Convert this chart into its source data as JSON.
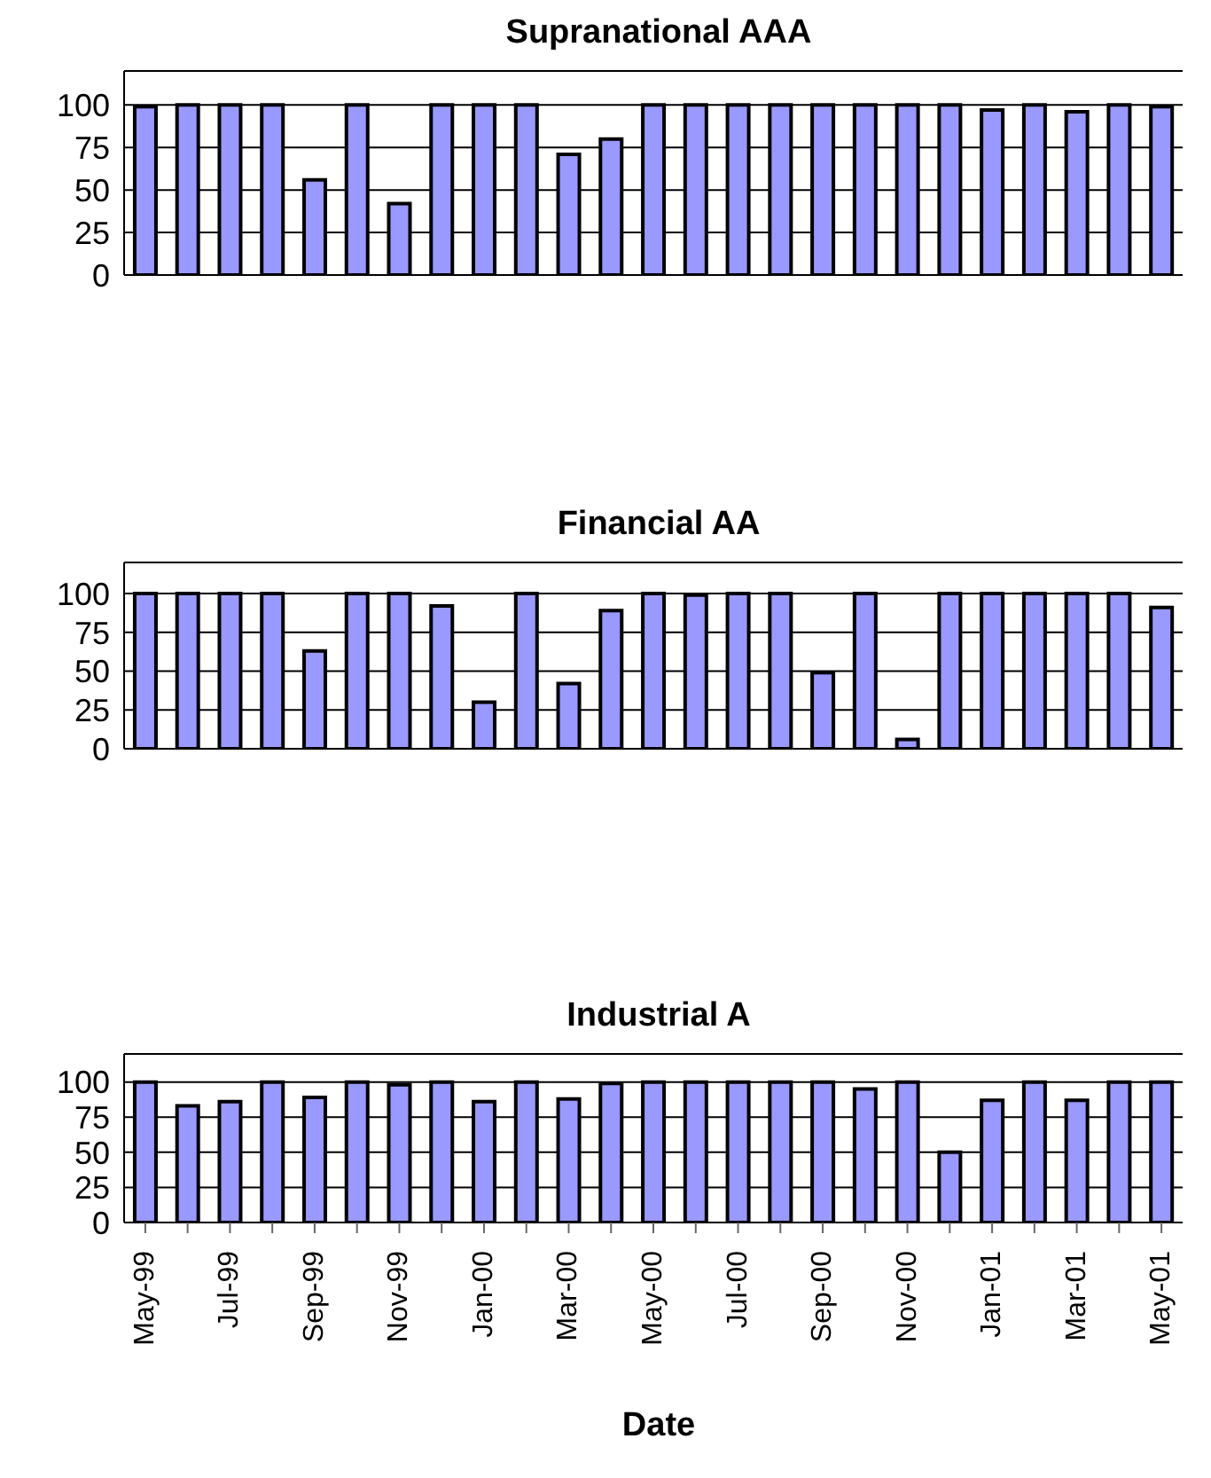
{
  "chart_data": [
    {
      "type": "bar",
      "title": "Supranational AAA",
      "categories": [
        null,
        null,
        null,
        null,
        null,
        null,
        null,
        null,
        null,
        null,
        null,
        null,
        null,
        null,
        null,
        null,
        null,
        null,
        null,
        null,
        null,
        null,
        null,
        null,
        null
      ],
      "values": [
        99,
        100,
        100,
        100,
        56,
        100,
        42,
        100,
        100,
        100,
        71,
        80,
        100,
        100,
        100,
        100,
        100,
        100,
        100,
        100,
        97,
        100,
        96,
        100,
        99
      ],
      "color": "#9999ff",
      "ylim": [
        0,
        120
      ],
      "yticks": [
        0,
        25,
        50,
        75,
        100
      ],
      "grid": "y",
      "tick_labels": "y"
    },
    {
      "type": "bar",
      "title": "Financial AA",
      "categories": [
        null,
        null,
        null,
        null,
        null,
        null,
        null,
        null,
        null,
        null,
        null,
        null,
        null,
        null,
        null,
        null,
        null,
        null,
        null,
        null,
        null,
        null,
        null,
        null,
        null
      ],
      "values": [
        100,
        100,
        100,
        100,
        63,
        100,
        100,
        92,
        30,
        100,
        42,
        89,
        100,
        99,
        100,
        100,
        49,
        100,
        6,
        100,
        100,
        100,
        100,
        100,
        91
      ],
      "color": "#9999ff",
      "ylim": [
        0,
        120
      ],
      "yticks": [
        0,
        25,
        50,
        75,
        100
      ],
      "grid": "y",
      "tick_labels": "y"
    },
    {
      "type": "bar",
      "title": "Industrial A",
      "xlabel": "Date",
      "categories": [
        "May-99",
        null,
        "Jul-99",
        null,
        "Sep-99",
        null,
        "Nov-99",
        null,
        "Jan-00",
        null,
        "Mar-00",
        null,
        "May-00",
        null,
        "Jul-00",
        null,
        "Sep-00",
        null,
        "Nov-00",
        null,
        "Jan-01",
        null,
        "Mar-01",
        null,
        "May-01"
      ],
      "values": [
        100,
        83,
        86,
        100,
        89,
        100,
        98,
        100,
        86,
        100,
        88,
        99,
        100,
        100,
        100,
        100,
        100,
        95,
        100,
        50,
        87,
        100,
        87,
        100,
        100
      ],
      "color": "#9999ff",
      "ylim": [
        0,
        120
      ],
      "yticks": [
        0,
        25,
        50,
        75,
        100
      ],
      "grid": "y"
    }
  ]
}
